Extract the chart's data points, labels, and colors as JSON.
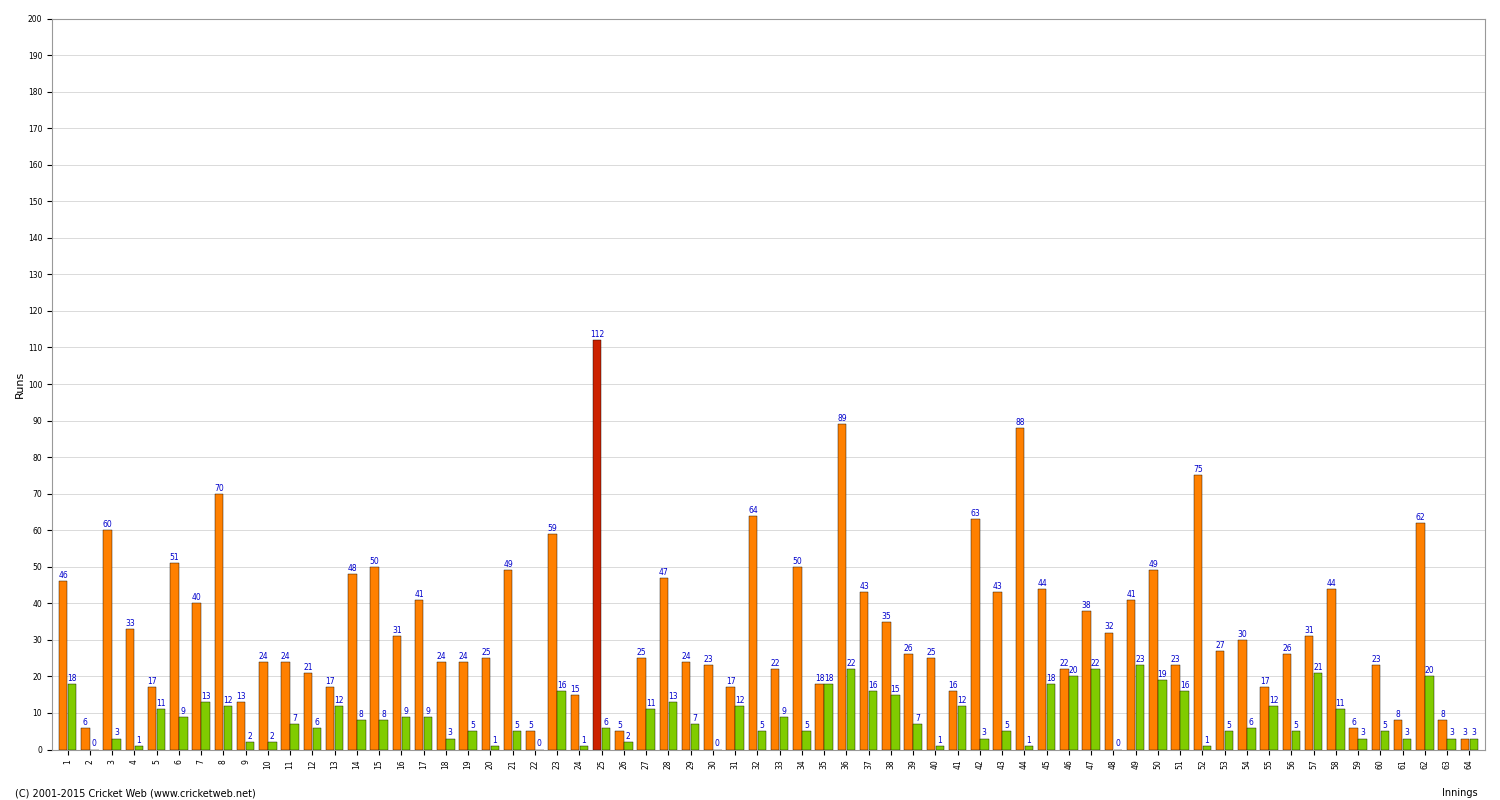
{
  "ylabel": "Runs",
  "xlabel": "Innings",
  "ylim": [
    0,
    200
  ],
  "yticks": [
    0,
    10,
    20,
    30,
    40,
    50,
    60,
    70,
    80,
    90,
    100,
    110,
    120,
    130,
    140,
    150,
    160,
    170,
    180,
    190,
    200
  ],
  "background_color": "#ffffff",
  "plot_bg_color": "#ffffff",
  "grid_color": "#cccccc",
  "orange_color": "#FF8000",
  "green_color": "#80CC00",
  "red_color": "#CC2200",
  "label_color": "#0000CC",
  "label_fontsize": 5.5,
  "axis_label_fontsize": 8,
  "tick_fontsize": 5.5,
  "footer": "(C) 2001-2015 Cricket Web (www.cricketweb.net)",
  "innings_right_label": "Innings",
  "scores_orange": [
    46,
    6,
    60,
    33,
    17,
    51,
    40,
    70,
    13,
    24,
    24,
    21,
    17,
    48,
    50,
    31,
    41,
    24,
    24,
    25,
    49,
    5,
    59,
    15,
    112,
    5,
    25,
    47,
    24,
    23,
    17,
    64,
    22,
    50,
    18,
    89,
    43,
    35,
    26,
    25,
    16,
    63,
    43,
    88,
    44,
    22,
    38,
    32,
    41,
    49,
    23,
    75,
    27,
    30,
    17,
    26,
    31,
    44,
    6,
    23,
    8,
    62,
    8,
    3
  ],
  "scores_green": [
    18,
    0,
    3,
    1,
    11,
    9,
    13,
    12,
    2,
    2,
    7,
    6,
    12,
    8,
    8,
    9,
    9,
    3,
    5,
    1,
    5,
    0,
    16,
    1,
    6,
    2,
    11,
    13,
    7,
    0,
    12,
    5,
    9,
    5,
    18,
    22,
    16,
    15,
    7,
    1,
    12,
    3,
    5,
    1,
    18,
    20,
    22,
    0,
    23,
    19,
    16,
    1,
    5,
    6,
    12,
    5,
    21,
    11,
    3,
    5,
    3,
    20,
    3,
    3
  ],
  "xtick_labels": [
    "1",
    "2",
    "3",
    "4",
    "5",
    "6",
    "7",
    "8",
    "9",
    "10",
    "11",
    "12",
    "13",
    "14",
    "15",
    "16",
    "17",
    "18",
    "19",
    "20",
    "21",
    "22",
    "23",
    "24",
    "25",
    "26",
    "27",
    "28",
    "29",
    "30",
    "31",
    "32",
    "33",
    "34",
    "35",
    "36",
    "37",
    "38",
    "39",
    "40",
    "41",
    "42",
    "43",
    "44",
    "45",
    "46",
    "47",
    "48",
    "49",
    "50",
    "51",
    "52",
    "53",
    "54",
    "55",
    "56",
    "57",
    "58",
    "59",
    "60",
    "61",
    "62",
    "63",
    "64"
  ]
}
